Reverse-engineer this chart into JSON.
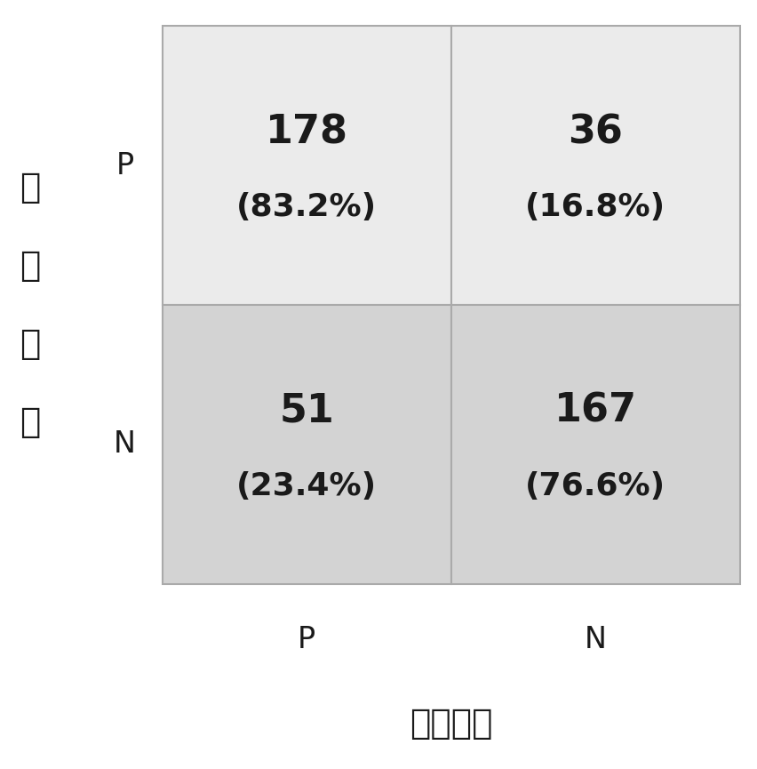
{
  "matrix": [
    [
      178,
      36
    ],
    [
      51,
      167
    ]
  ],
  "percentages": [
    [
      "(83.2%)",
      "(16.8%)"
    ],
    [
      "(23.4%)",
      "(76.6%)"
    ]
  ],
  "row_labels": [
    "P",
    "N"
  ],
  "col_labels": [
    "P",
    "N"
  ],
  "xlabel": "预测标签",
  "ylabel": "真实标签",
  "top_row_color": "#ebebeb",
  "bottom_row_color": "#d3d3d3",
  "grid_color": "#aaaaaa",
  "text_color": "#1a1a1a",
  "bg_color": "#ffffff",
  "number_fontsize": 32,
  "percent_fontsize": 26,
  "label_fontsize": 24,
  "axis_label_fontsize": 28,
  "ylabel_char_fontsize": 28,
  "figsize": [
    8.53,
    8.65
  ]
}
